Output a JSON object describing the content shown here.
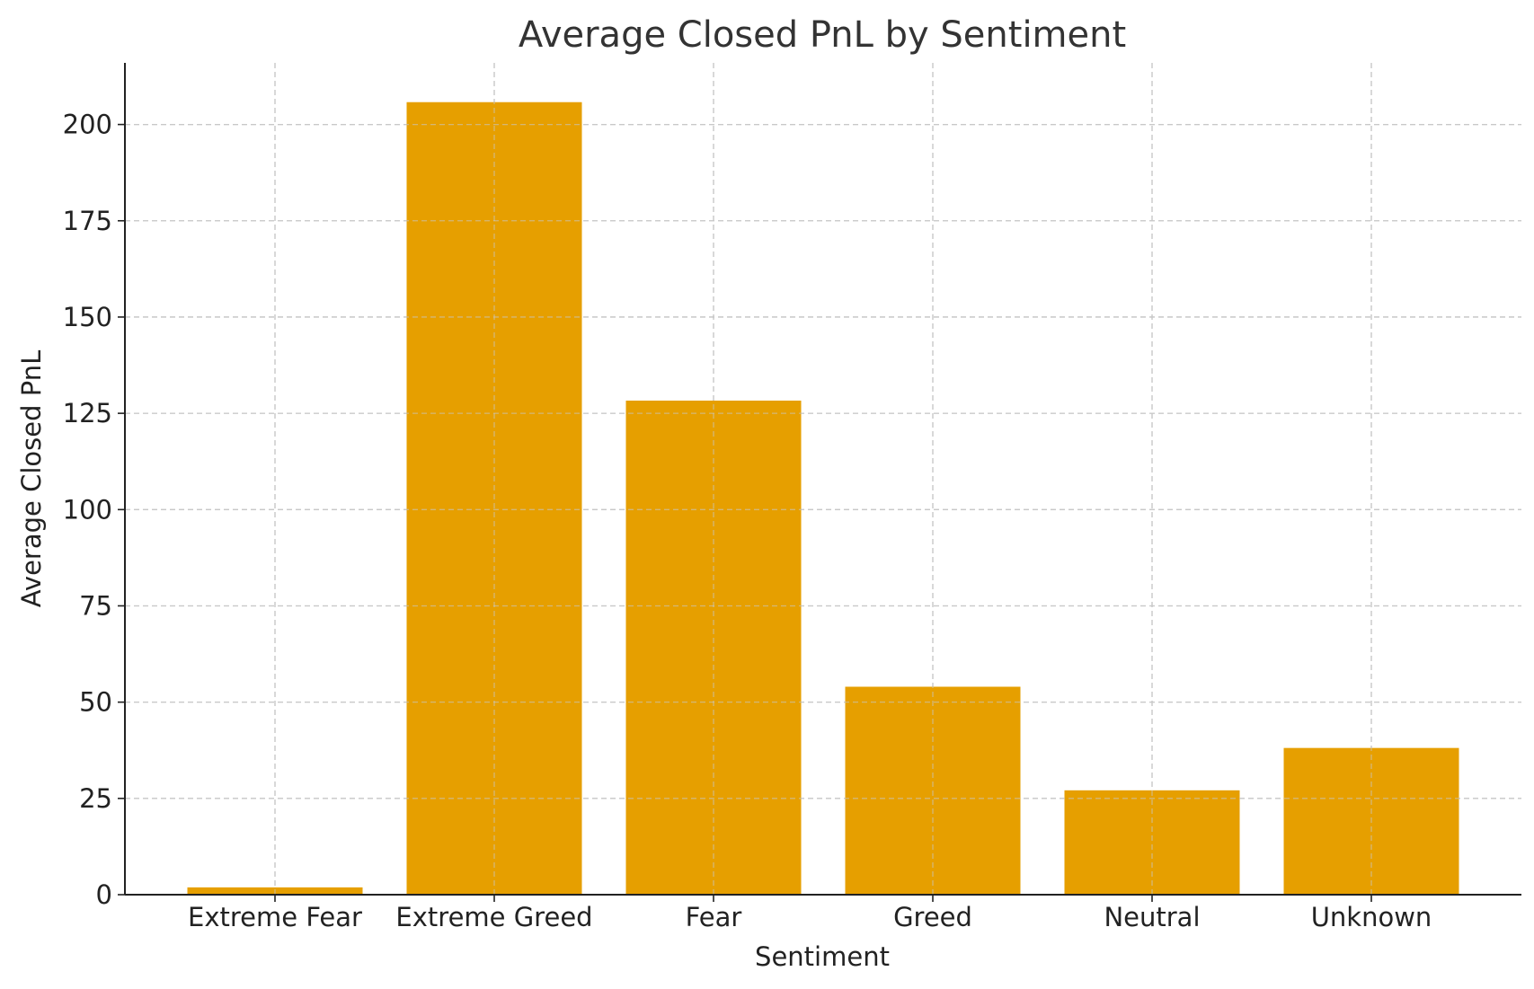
{
  "chart_data": {
    "type": "bar",
    "title": "Average Closed PnL by Sentiment",
    "xlabel": "Sentiment",
    "ylabel": "Average Closed PnL",
    "categories": [
      "Extreme Fear",
      "Extreme Greed",
      "Fear",
      "Greed",
      "Neutral",
      "Unknown"
    ],
    "values": [
      1.9,
      205.8,
      128.3,
      54.0,
      27.1,
      38.1
    ],
    "ylim": [
      0,
      216
    ],
    "yticks": [
      0,
      25,
      50,
      75,
      100,
      125,
      150,
      175,
      200
    ],
    "grid": true,
    "bar_color": "#E69F00"
  }
}
